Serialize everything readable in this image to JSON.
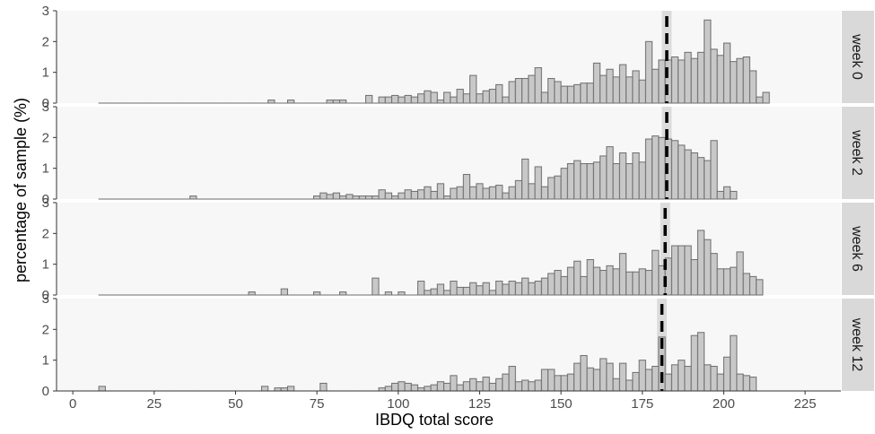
{
  "chart_data": {
    "type": "bar",
    "subtype": "faceted-histogram",
    "xlabel": "IBDQ total score",
    "ylabel": "percentage of sample (%)",
    "xlim": [
      -5,
      236
    ],
    "ylim": [
      0,
      3
    ],
    "x_ticks": [
      0,
      25,
      50,
      75,
      100,
      125,
      150,
      175,
      200,
      225
    ],
    "y_ticks": [
      0,
      1,
      2,
      3
    ],
    "bin_width": 2,
    "bin_start": 8,
    "bar_fill": "#c8c8c8",
    "bar_outline": "#6e6e6e",
    "panel_background": "#f7f7f7",
    "strip_background": "#d9d9d9",
    "ci_band_color": "#dcdcdc",
    "dashed_line_color": "#000000",
    "panels": [
      {
        "label": "week 0",
        "mean": 182.5,
        "ci": [
          181.0,
          184.0
        ],
        "values": [
          0,
          0,
          0,
          0,
          0,
          0,
          0,
          0,
          0,
          0,
          0,
          0,
          0,
          0,
          0,
          0,
          0,
          0,
          0,
          0,
          0,
          0,
          0,
          0,
          0,
          0,
          0.1,
          0,
          0,
          0.1,
          0,
          0,
          0,
          0,
          0,
          0.1,
          0.1,
          0.1,
          0,
          0,
          0,
          0.25,
          0,
          0.2,
          0.2,
          0.25,
          0.2,
          0.25,
          0.2,
          0.3,
          0.4,
          0.35,
          0.1,
          0.35,
          0.2,
          0.45,
          0.3,
          0.9,
          0.3,
          0.4,
          0.45,
          0.6,
          0.2,
          0.7,
          0.8,
          0.8,
          0.9,
          1.15,
          0.35,
          0.8,
          0.7,
          0.55,
          0.55,
          0.6,
          0.65,
          0.65,
          1.3,
          0.9,
          1.1,
          0.85,
          1.25,
          0.85,
          1.05,
          0.75,
          2.0,
          1.1,
          1.4,
          1.4,
          1.5,
          1.4,
          1.65,
          1.45,
          1.65,
          2.7,
          1.75,
          1.55,
          1.95,
          1.35,
          1.45,
          1.5,
          1.05,
          0.2,
          0.35
        ]
      },
      {
        "label": "week 2",
        "mean": 182.5,
        "ci": [
          181.0,
          184.0
        ],
        "values": [
          0,
          0,
          0,
          0,
          0,
          0,
          0,
          0,
          0,
          0,
          0,
          0,
          0,
          0,
          0.1,
          0,
          0,
          0,
          0,
          0,
          0,
          0,
          0,
          0,
          0,
          0,
          0,
          0,
          0,
          0,
          0,
          0,
          0,
          0.1,
          0.2,
          0.15,
          0.2,
          0.1,
          0.15,
          0.1,
          0.1,
          0.1,
          0.1,
          0.3,
          0.2,
          0.1,
          0.2,
          0.3,
          0.25,
          0.3,
          0.4,
          0.25,
          0.5,
          0.1,
          0.35,
          0.4,
          0.8,
          0.4,
          0.5,
          0.35,
          0.4,
          0.45,
          0.2,
          0.4,
          0.6,
          1.3,
          0.5,
          1.05,
          0.4,
          0.7,
          0.75,
          1.0,
          1.15,
          1.25,
          1.15,
          1.15,
          1.2,
          1.4,
          1.7,
          1.15,
          1.5,
          1.15,
          1.5,
          1.2,
          1.95,
          2.05,
          2.0,
          1.95,
          1.9,
          1.75,
          1.6,
          1.5,
          1.35,
          1.25,
          1.9,
          0.25,
          0.4,
          0.25
        ]
      },
      {
        "label": "week 6",
        "mean": 182.0,
        "ci": [
          180.5,
          183.5
        ],
        "values": [
          0,
          0,
          0,
          0,
          0,
          0,
          0,
          0,
          0,
          0,
          0,
          0,
          0,
          0,
          0,
          0,
          0,
          0,
          0,
          0,
          0,
          0,
          0,
          0.1,
          0,
          0,
          0,
          0,
          0.2,
          0,
          0,
          0,
          0,
          0.1,
          0,
          0,
          0,
          0.1,
          0,
          0,
          0,
          0,
          0.55,
          0,
          0.1,
          0,
          0.1,
          0,
          0,
          0.45,
          0.15,
          0.2,
          0.35,
          0.15,
          0.45,
          0.25,
          0.25,
          0.4,
          0.3,
          0.4,
          0.15,
          0.45,
          0.35,
          0.45,
          0.4,
          0.55,
          0.4,
          0.45,
          0.55,
          0.7,
          0.8,
          0.6,
          0.9,
          1.1,
          0.6,
          1.15,
          0.9,
          0.8,
          0.95,
          0.85,
          1.35,
          0.75,
          0.75,
          0.85,
          0.8,
          1.45,
          0.95,
          1.2,
          1.6,
          1.6,
          1.6,
          1.15,
          2.1,
          1.8,
          1.35,
          0.85,
          0.85,
          0.9,
          1.4,
          0.7,
          0.6,
          0.5
        ]
      },
      {
        "label": "week 12",
        "mean": 181.0,
        "ci": [
          179.5,
          182.5
        ],
        "values": [
          0.15,
          0,
          0,
          0,
          0,
          0,
          0,
          0,
          0,
          0,
          0,
          0,
          0,
          0,
          0,
          0,
          0,
          0,
          0,
          0,
          0,
          0,
          0,
          0,
          0,
          0.15,
          0,
          0.1,
          0.1,
          0.15,
          0,
          0,
          0,
          0,
          0.25,
          0,
          0,
          0,
          0,
          0,
          0,
          0,
          0,
          0.1,
          0.15,
          0.25,
          0.3,
          0.25,
          0.2,
          0.1,
          0.15,
          0.2,
          0.3,
          0.25,
          0.5,
          0.2,
          0.3,
          0.4,
          0.3,
          0.45,
          0.25,
          0.4,
          0.55,
          0.8,
          0.3,
          0.35,
          0.3,
          0.35,
          0.7,
          0.7,
          0.5,
          0.5,
          0.55,
          0.9,
          1.15,
          0.75,
          0.7,
          1.05,
          0.9,
          0.4,
          0.9,
          0.35,
          0.6,
          1.0,
          0.7,
          0.8,
          1.75,
          0.55,
          0.85,
          1.0,
          0.8,
          1.8,
          1.9,
          0.85,
          0.8,
          0.55,
          1.1,
          1.8,
          0.55,
          0.5,
          0.45
        ]
      }
    ]
  }
}
